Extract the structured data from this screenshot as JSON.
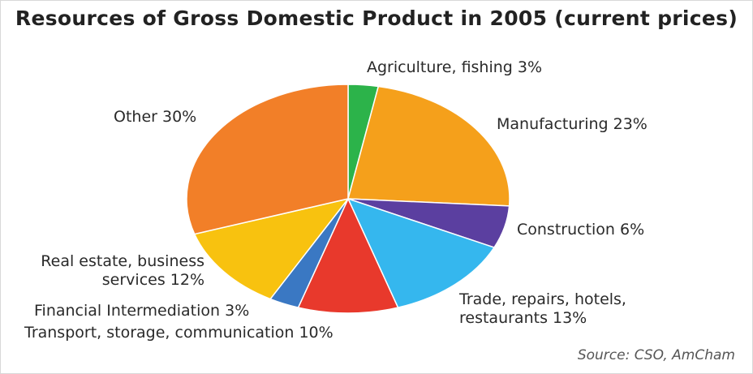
{
  "chart_data": {
    "type": "pie",
    "title": "Resources of Gross Domestic Product in 2005 (current prices)",
    "source": "Source: CSO, AmCham",
    "slices": [
      {
        "label": "Agriculture, fishing 3%",
        "value": 3,
        "color": "#2cb34a"
      },
      {
        "label": "Manufacturing 23%",
        "value": 23,
        "color": "#f5a01b"
      },
      {
        "label": "Construction 6%",
        "value": 6,
        "color": "#5b3fa0"
      },
      {
        "label": "Trade, repairs, hotels, restaurants 13%",
        "value": 13,
        "color": "#35b7ee"
      },
      {
        "label": "Transport, storage, communication 10%",
        "value": 10,
        "color": "#e8392c"
      },
      {
        "label": "Financial Intermediation 3%",
        "value": 3,
        "color": "#3a78c3"
      },
      {
        "label": "Real estate, business services 12%",
        "value": 12,
        "color": "#f8c20f"
      },
      {
        "label": "Other 30%",
        "value": 30,
        "color": "#f27f28"
      }
    ]
  }
}
